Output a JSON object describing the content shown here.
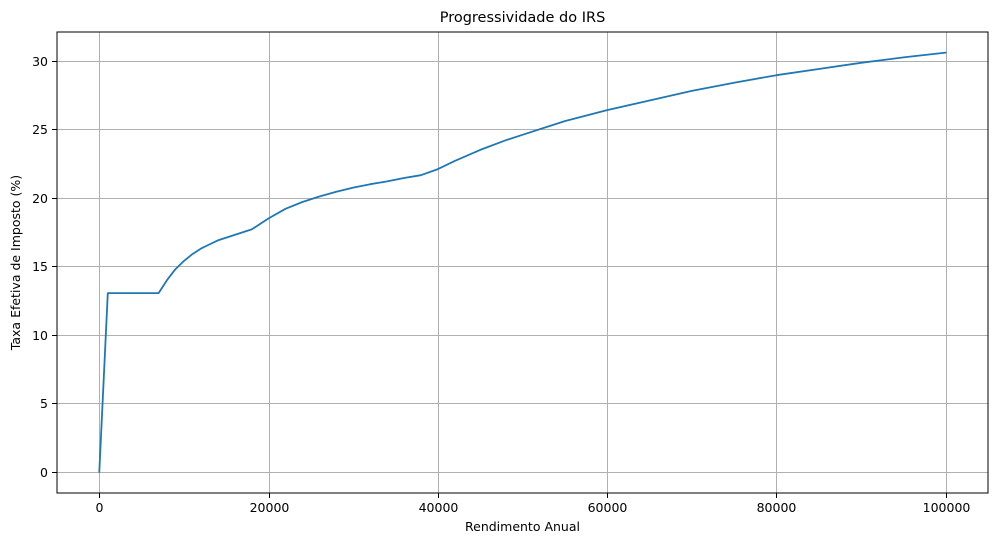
{
  "chart_data": {
    "type": "line",
    "title": "Progressividade do IRS",
    "xlabel": "Rendimento Anual",
    "ylabel": "Taxa Efetiva de Imposto (%)",
    "xlim": [
      -5000,
      105000
    ],
    "ylim": [
      -1.53,
      32.1
    ],
    "xticks": [
      0,
      20000,
      40000,
      60000,
      80000,
      100000
    ],
    "xtick_labels": [
      "0",
      "20000",
      "40000",
      "60000",
      "80000",
      "100000"
    ],
    "yticks": [
      0,
      5,
      10,
      15,
      20,
      25,
      30
    ],
    "ytick_labels": [
      "0",
      "5",
      "10",
      "15",
      "20",
      "25",
      "30"
    ],
    "grid": true,
    "legend": "none",
    "series": [
      {
        "color": "#1f77b4",
        "x": [
          0,
          1000,
          2000,
          4000,
          6000,
          7000,
          8000,
          9000,
          10000,
          11000,
          12000,
          13000,
          14000,
          15000,
          16000,
          17000,
          18000,
          20000,
          22000,
          24000,
          26000,
          28000,
          30000,
          32000,
          34000,
          36000,
          38000,
          40000,
          42000,
          45000,
          48000,
          50000,
          55000,
          60000,
          65000,
          70000,
          75000,
          80000,
          85000,
          90000,
          95000,
          100000
        ],
        "y": [
          0,
          13.05,
          13.05,
          13.05,
          13.05,
          13.05,
          14.0,
          14.8,
          15.4,
          15.9,
          16.3,
          16.6,
          16.9,
          17.1,
          17.3,
          17.5,
          17.7,
          18.5,
          19.2,
          19.7,
          20.1,
          20.45,
          20.75,
          21.0,
          21.2,
          21.45,
          21.65,
          22.1,
          22.7,
          23.5,
          24.2,
          24.6,
          25.6,
          26.4,
          27.1,
          27.8,
          28.4,
          28.95,
          29.4,
          29.85,
          30.25,
          30.6
        ]
      }
    ]
  }
}
